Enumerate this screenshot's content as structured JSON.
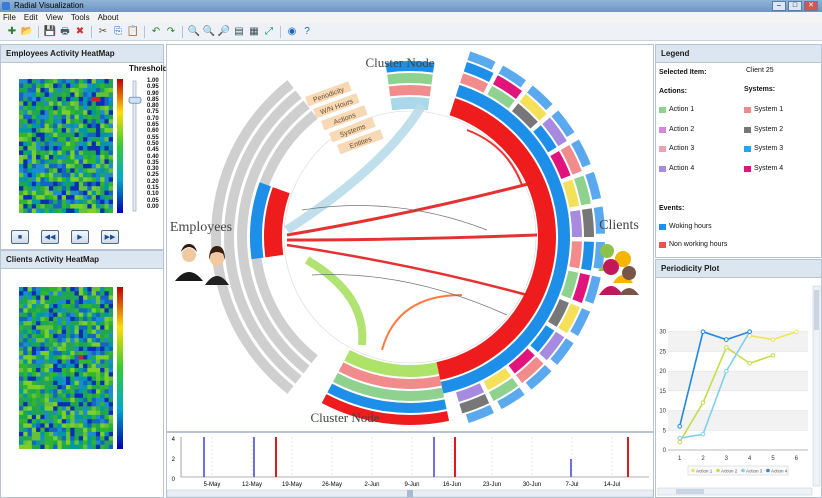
{
  "window": {
    "title": "Radial Visualization",
    "controls": [
      "–",
      "□",
      "✕"
    ]
  },
  "menu": [
    "File",
    "Edit",
    "View",
    "Tools",
    "About"
  ],
  "toolbar_icons": [
    "new-icon",
    "open-icon",
    "save-icon",
    "print-icon",
    "delete-icon",
    "cut-icon",
    "copy-icon",
    "paste-icon",
    "undo-icon",
    "redo-icon",
    "zoom-in-icon",
    "zoom-out-icon",
    "zoom-fit-icon",
    "page-icon",
    "grid-icon",
    "expand-icon",
    "settings-icon",
    "help-icon"
  ],
  "toolbar_glyphs": [
    "✚",
    "📂",
    "💾",
    "🖶",
    "✖",
    "✂",
    "⎘",
    "📋",
    "↶",
    "↷",
    "🔍",
    "🔍",
    "🔎",
    "▤",
    "▦",
    "⤢",
    "◉",
    "?"
  ],
  "employees_heatmap": {
    "title": "Employees Activity HeatMap",
    "threshold_label": "Threshold",
    "threshold_value": 0.85,
    "ticks": [
      "1.00",
      "0.95",
      "0.90",
      "0.85",
      "0.80",
      "0.75",
      "0.70",
      "0.65",
      "0.60",
      "0.55",
      "0.50",
      "0.45",
      "0.40",
      "0.35",
      "0.30",
      "0.25",
      "0.20",
      "0.15",
      "0.10",
      "0.05",
      "0.00"
    ],
    "controls": [
      "stop",
      "rewind",
      "play",
      "forward"
    ],
    "control_glyphs": [
      "■",
      "◀◀",
      "▶",
      "▶▶"
    ]
  },
  "clients_heatmap": {
    "title": "Clients Activity HeatMap"
  },
  "radial": {
    "cluster_top": "Cluster Node",
    "cluster_bottom": "Cluster Node",
    "employees": "Employees",
    "clients": "Clients",
    "ring_labels": [
      "Periodicity",
      "W/N Hours",
      "Actions",
      "Systems",
      "Entities"
    ]
  },
  "timeline": {
    "y_ticks": [
      "4",
      "2",
      "0"
    ],
    "x_ticks": [
      "5-May",
      "12-May",
      "19-May",
      "26-May",
      "2-Jun",
      "9-Jun",
      "16-Jun",
      "23-Jun",
      "30-Jun",
      "7-Jul",
      "14-Jul"
    ]
  },
  "legend": {
    "title": "Legend",
    "selected_label": "Selected Item:",
    "selected_value": "Client 25",
    "actions_label": "Actions:",
    "systems_label": "Systems:",
    "actions": [
      {
        "label": "Action 1",
        "color": "#8fd18f"
      },
      {
        "label": "Action 2",
        "color": "#d08ad8"
      },
      {
        "label": "Action 3",
        "color": "#f0a0b4"
      },
      {
        "label": "Action 4",
        "color": "#a58ae0"
      }
    ],
    "systems": [
      {
        "label": "System 1",
        "color": "#f08a8a"
      },
      {
        "label": "System 2",
        "color": "#777777"
      },
      {
        "label": "System 3",
        "color": "#1ea8ef"
      },
      {
        "label": "System 4",
        "color": "#e0147a"
      }
    ],
    "events_label": "Events:",
    "events": [
      {
        "label": "Woking hours",
        "color": "#1e90e8"
      },
      {
        "label": "Non working hours",
        "color": "#f05050"
      }
    ]
  },
  "periodicity": {
    "title": "Periodicity Plot",
    "chart_data": {
      "type": "line",
      "x": [
        1,
        2,
        3,
        4,
        5,
        6
      ],
      "ylim": [
        0,
        35
      ],
      "y_ticks": [
        "30",
        "25",
        "20",
        "15",
        "10",
        "5",
        "0"
      ],
      "x_ticks": [
        "1",
        "2",
        "3",
        "4",
        "5",
        "6"
      ],
      "series": [
        {
          "name": "Action 1",
          "color": "#f2e35a",
          "x": [
            4,
            5,
            6
          ],
          "values": [
            29,
            28,
            30
          ]
        },
        {
          "name": "Action 2",
          "color": "#c6dc4a",
          "x": [
            1,
            2,
            3,
            4,
            5
          ],
          "values": [
            2,
            12,
            26,
            22,
            24
          ]
        },
        {
          "name": "Action 3",
          "color": "#7fd0ee",
          "x": [
            1,
            2,
            3,
            4
          ],
          "values": [
            3,
            4,
            20,
            30
          ]
        },
        {
          "name": "Action 4",
          "color": "#1e88e5",
          "x": [
            1,
            2,
            3,
            4
          ],
          "values": [
            6,
            30,
            28,
            30
          ]
        }
      ]
    }
  }
}
